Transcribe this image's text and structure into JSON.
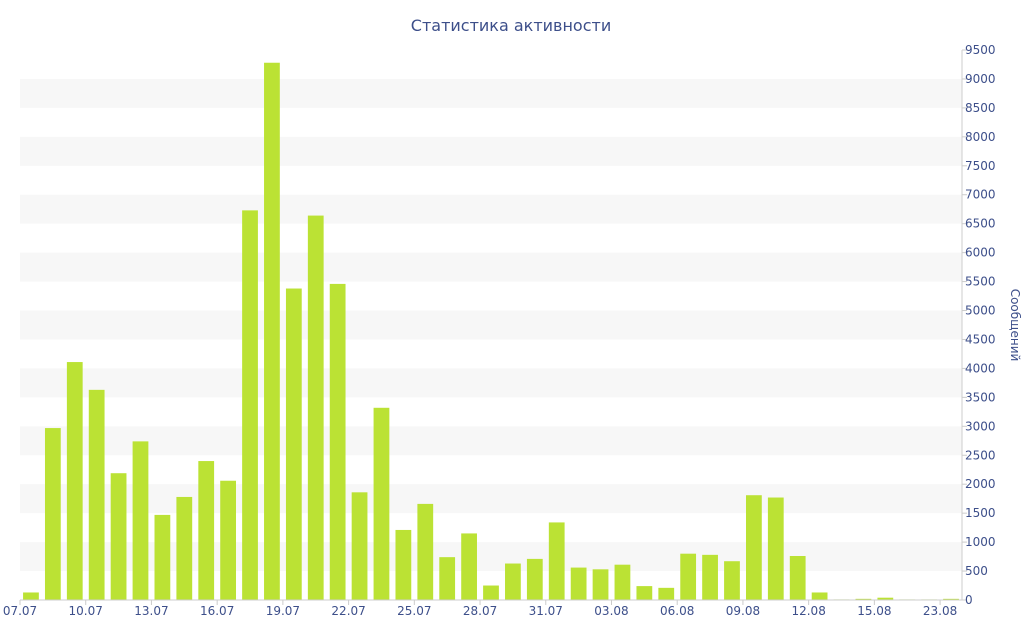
{
  "chart_data": {
    "type": "bar",
    "title": "Статистика активности",
    "xlabel": "",
    "ylabel": "Сообщений",
    "ylim": [
      0,
      9500
    ],
    "yticks": [
      0,
      500,
      1000,
      1500,
      2000,
      2500,
      3000,
      3500,
      4000,
      4500,
      5000,
      5500,
      6000,
      6500,
      7000,
      7500,
      8000,
      8500,
      9000,
      9500
    ],
    "y_axis_side": "right",
    "grid": "alternating horizontal bands",
    "legend": "none",
    "bar_color": "#bbe234",
    "band_color": "#f7f7f7",
    "axis_text_color": "#3d4f8a",
    "x_tick_labels": [
      "07.07",
      "10.07",
      "13.07",
      "16.07",
      "19.07",
      "22.07",
      "25.07",
      "28.07",
      "31.07",
      "03.08",
      "06.08",
      "09.08",
      "12.08",
      "15.08",
      "23.08"
    ],
    "x_tick_positions": [
      0,
      3,
      6,
      9,
      12,
      15,
      18,
      21,
      24,
      27,
      30,
      33,
      36,
      39,
      42
    ],
    "values": [
      130,
      2970,
      4110,
      3630,
      2190,
      2740,
      1470,
      1780,
      2400,
      2060,
      6730,
      9280,
      5380,
      6640,
      5460,
      1860,
      3320,
      1210,
      1660,
      740,
      1150,
      250,
      630,
      710,
      1340,
      560,
      530,
      610,
      240,
      210,
      800,
      780,
      670,
      1810,
      1770,
      760,
      130,
      10,
      20,
      40,
      10,
      10,
      20
    ]
  }
}
